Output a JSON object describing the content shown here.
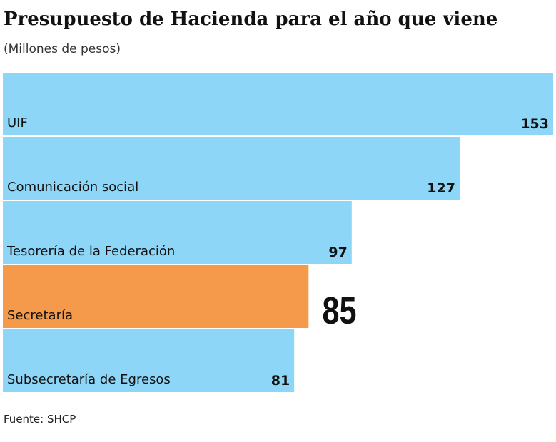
{
  "chart_data": {
    "type": "bar",
    "orientation": "horizontal",
    "title": "Presupuesto de Hacienda para el año que viene",
    "subtitle": "(Millones de pesos)",
    "source": "Fuente: SHCP",
    "categories": [
      "UIF",
      "Comunicación social",
      "Tesorería de la Federación",
      "Secretaría",
      "Subsecretaría de Egresos"
    ],
    "values": [
      153,
      127,
      97,
      85,
      81
    ],
    "color": "#8dd6f7",
    "colors": [
      "#8dd6f7",
      "#8dd6f7",
      "#8dd6f7",
      "#f59a4a",
      "#8dd6f7"
    ]
  }
}
